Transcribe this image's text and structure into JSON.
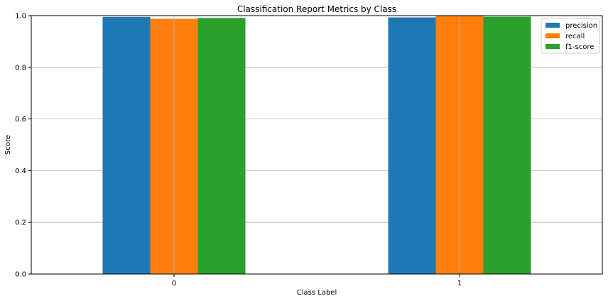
{
  "chart_data": {
    "type": "bar",
    "title": "Classification Report Metrics by Class",
    "xlabel": "Class Label",
    "ylabel": "Score",
    "categories": [
      "0",
      "1"
    ],
    "series": [
      {
        "name": "precision",
        "color": "#1f77b4",
        "values": [
          0.995,
          0.993
        ]
      },
      {
        "name": "recall",
        "color": "#ff7f0e",
        "values": [
          0.988,
          0.999
        ]
      },
      {
        "name": "f1-score",
        "color": "#2ca02c",
        "values": [
          0.991,
          0.996
        ]
      }
    ],
    "ylim": [
      0,
      1.0
    ],
    "yticks": [
      0.0,
      0.2,
      0.4,
      0.6,
      0.8,
      1.0
    ],
    "ytick_labels": [
      "0.0",
      "0.2",
      "0.4",
      "0.6",
      "0.8",
      "1.0"
    ],
    "grid": true,
    "legend": "top-right"
  }
}
